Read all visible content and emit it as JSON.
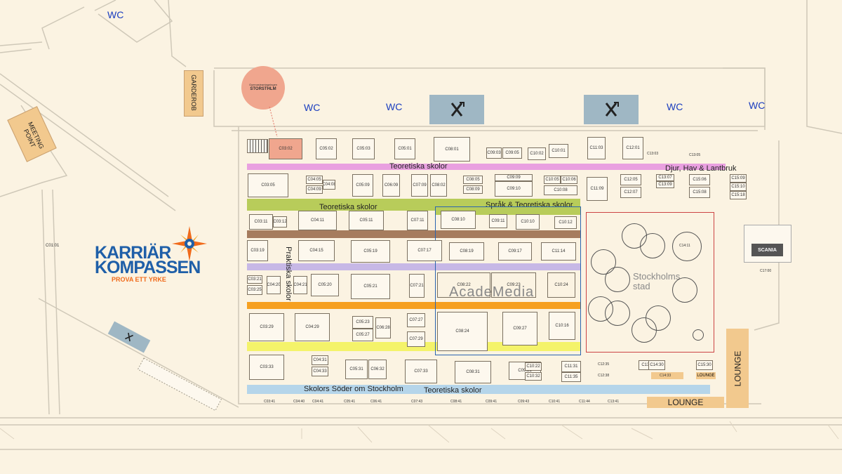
{
  "restrooms": {
    "wc1": "WC",
    "wc2": "WC",
    "wc3": "WC",
    "wc4": "WC",
    "wc5": "WC"
  },
  "garderob": "GARDEROB",
  "meeting_point": "MEETING POINT",
  "storsthlm": {
    "top": "Gymnasieantagningen",
    "name": "STORSTHLM"
  },
  "logo": {
    "line1": "KARRIÄR",
    "line2": "KOMPASSEN",
    "tagline": "PROVA ETT YRKE"
  },
  "bands": {
    "pink_left": "Teoretiska skolor",
    "pink_right": "Djur, Hav & Lantbruk",
    "green": "Teoretiska skolor",
    "green_right": "Språk & Teoretiska skolor",
    "praktiska": "Praktiska skolor",
    "blue_left": "Skolors Söder om Stockholm",
    "blue_right": "Teoretiska skolor"
  },
  "academedia": "AcadeMedia",
  "stockholms_stad": {
    "line1": "Stockholms",
    "line2": "stad"
  },
  "scania": {
    "name": "SCANIA",
    "booth": "C17:00"
  },
  "lounges": {
    "bottom": "LOUNGE",
    "right": "LOUNGE",
    "small": "LOUNGE"
  },
  "booths": {
    "c0101": "C01:01",
    "c0302": "C03:02",
    "c0502": "C05:02",
    "c0503": "C05:03",
    "c0501": "C05:01",
    "c0801": "C08:01",
    "c0903": "C09:03",
    "c0905": "C09:05",
    "c1002": "C10:02",
    "c1001": "C10:01",
    "c1103": "C11:03",
    "c1201": "C12:01",
    "c1303": "C13:03",
    "c1305": "C13:05",
    "c0305": "C03:05",
    "c0405": "C04:05",
    "c0409": "C04:09",
    "c0408": "C04:08",
    "c0509": "C05:09",
    "c0609": "C06:09",
    "c0709": "C07:09",
    "c0802": "C08:02",
    "c0805": "C08:05",
    "c0809": "C08:09",
    "c0910": "C09:10",
    "c0909": "C09:09",
    "c1005": "C10:05",
    "c1006": "C10:06",
    "c1008": "C10:08",
    "c1109": "C11:09",
    "c1205": "C12:05",
    "c1207": "C12:07",
    "c1307": "C13:07",
    "c1309": "C13:09",
    "c1506": "C15:06",
    "c1508": "C15:08",
    "c1509": "C15:09",
    "c1510": "C15:10",
    "c1518": "C15:18",
    "c0311": "C03:11",
    "c0312": "C03:12",
    "c0411": "C04:11",
    "c0511": "C05:11",
    "c0711": "C07:11",
    "c0810": "C08:10",
    "c0911": "C09:11",
    "c1010": "C10:10",
    "c1012": "C10:12",
    "c0319": "C03:19",
    "c0415": "C04:15",
    "c0519": "C05:19",
    "c0717": "C07:17",
    "c0819": "C08:19",
    "c0917": "C09:17",
    "c1114": "C11:14",
    "c1411": "C14:11",
    "c0321": "C03:21",
    "c0325": "C03:25",
    "c0420": "C04:20",
    "c0421": "C04:21",
    "c0520": "C05:20",
    "c0521": "C05:21",
    "c0721": "C07:21",
    "c0822": "C08:22",
    "c0923": "C09:23",
    "c1024": "C10:24",
    "c0329": "C03:29",
    "c0429": "C04:29",
    "c0523": "C05:23",
    "c0527": "C05:27",
    "c0628": "C06:28",
    "c0727": "C07:27",
    "c0729": "C07:29",
    "c0824": "C08:24",
    "c0927": "C09:27",
    "c1016": "C10:16",
    "c0333": "C03:33",
    "c0431": "C04:31",
    "c0433": "C04:33",
    "c0531": "C05:31",
    "c0632": "C06:32",
    "c0733": "C07:33",
    "c0831": "C08:31",
    "c0931": "C09:31",
    "c1022": "C10:22",
    "c1032": "C10:32",
    "c1131": "C11:31",
    "c1135": "C11:35",
    "c1235": "C12:35",
    "c1238": "C12:38",
    "c1331": "C13:31",
    "c1430": "C14:30",
    "c1433": "C14:33",
    "c1530": "C15:30",
    "c0341": "C03:41",
    "c0440": "C04:40",
    "c0441": "C04:41",
    "c0541": "C05:41",
    "c0641": "C06:41",
    "c0743": "C07:43",
    "c0841": "C08:41",
    "c0941": "C09:41",
    "c0943": "C09:43",
    "c1041": "C10:41",
    "c1144": "C11:44",
    "c1341": "C13:41"
  }
}
